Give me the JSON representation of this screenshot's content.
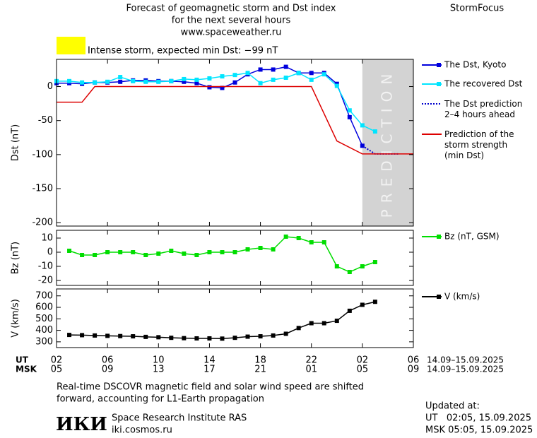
{
  "header": {
    "title": [
      "Forecast of geomagnetic storm and Dst index",
      "for the next several hours",
      "www.spaceweather.ru"
    ],
    "brand": "StormFocus",
    "alert": "Intense storm, expected min Dst: −99 nT",
    "alert_color": "#ffff00"
  },
  "chart_data": [
    {
      "type": "line",
      "ylabel": "Dst (nT)",
      "xlim": [
        0,
        28
      ],
      "ylim": [
        -205,
        40
      ],
      "yticks": [
        0,
        -50,
        -100,
        -150,
        -200
      ],
      "shaded_xrange": [
        24,
        28
      ],
      "shaded_label": "PREDICTION",
      "series": [
        {
          "name": "The Dst, Kyoto",
          "color": "#0000dd",
          "marker": "square",
          "dash": null,
          "x": [
            0,
            1,
            2,
            3,
            4,
            5,
            6,
            7,
            8,
            9,
            10,
            11,
            12,
            13,
            14,
            15,
            16,
            17,
            18,
            19,
            20,
            21,
            22,
            23,
            24
          ],
          "values": [
            5,
            5,
            4,
            6,
            6,
            7,
            9,
            9,
            8,
            8,
            7,
            5,
            -1,
            -2,
            6,
            18,
            25,
            25,
            29,
            20,
            20,
            20,
            4,
            -45,
            -87
          ]
        },
        {
          "name": "The recovered Dst",
          "color": "#00e5ff",
          "marker": "square",
          "dash": null,
          "x": [
            0,
            1,
            2,
            3,
            4,
            5,
            6,
            7,
            8,
            9,
            10,
            11,
            12,
            13,
            14,
            15,
            16,
            17,
            18,
            19,
            20,
            21,
            22,
            23,
            24,
            25
          ],
          "values": [
            8,
            8,
            6,
            6,
            7,
            14,
            8,
            7,
            7,
            8,
            11,
            10,
            12,
            15,
            17,
            20,
            5,
            10,
            13,
            20,
            10,
            18,
            1,
            -35,
            -57,
            -66
          ]
        },
        {
          "name": "The Dst prediction\n2–4 hours ahead",
          "color": "#0000cc",
          "marker": null,
          "dash": "dotted",
          "x": [
            24,
            25,
            26.8
          ],
          "values": [
            -87,
            -99,
            -99
          ]
        },
        {
          "name": "Prediction of the\nstorm strength\n(min Dst)",
          "color": "#dd0000",
          "marker": null,
          "dash": null,
          "x": [
            0,
            2,
            3,
            20,
            22,
            24,
            28
          ],
          "values": [
            -23,
            -23,
            0,
            0,
            -80,
            -99,
            -99
          ]
        }
      ]
    },
    {
      "type": "line",
      "ylabel": "Bz (nT)",
      "xlim": [
        0,
        28
      ],
      "ylim": [
        -23.5,
        15.5
      ],
      "yticks": [
        -20,
        -10,
        0,
        10
      ],
      "series": [
        {
          "name": "Bz (nT, GSM)",
          "color": "#00dd00",
          "marker": "square",
          "dash": null,
          "x": [
            1,
            2,
            3,
            4,
            5,
            6,
            7,
            8,
            9,
            10,
            11,
            12,
            13,
            14,
            15,
            16,
            17,
            18,
            19,
            20,
            21,
            22,
            23,
            24,
            25
          ],
          "values": [
            1,
            -2,
            -2,
            0,
            0,
            0,
            -2,
            -1,
            1,
            -1,
            -2,
            0,
            0,
            0,
            2,
            3,
            2,
            11,
            10,
            7,
            7,
            -10,
            -14,
            -10,
            -7
          ]
        }
      ]
    },
    {
      "type": "line",
      "ylabel": "V (km/s)",
      "xlim": [
        0,
        28
      ],
      "ylim": [
        250,
        760
      ],
      "yticks": [
        300,
        400,
        500,
        600,
        700
      ],
      "series": [
        {
          "name": "V (km/s)",
          "color": "#000000",
          "marker": "square",
          "dash": null,
          "x": [
            1,
            2,
            3,
            4,
            5,
            6,
            7,
            8,
            9,
            10,
            11,
            12,
            13,
            14,
            15,
            16,
            17,
            18,
            19,
            20,
            21,
            22,
            23,
            24,
            25
          ],
          "values": [
            360,
            358,
            355,
            352,
            350,
            348,
            343,
            340,
            335,
            332,
            330,
            330,
            328,
            335,
            345,
            348,
            355,
            370,
            420,
            462,
            462,
            483,
            570,
            622,
            648
          ]
        }
      ],
      "xtick_row_labels": [
        "UT",
        "MSK"
      ],
      "xticks": [
        {
          "value": 0,
          "label": "02"
        },
        {
          "value": 4,
          "label": "06"
        },
        {
          "value": 8,
          "label": "10"
        },
        {
          "value": 12,
          "label": "14"
        },
        {
          "value": 16,
          "label": "18"
        },
        {
          "value": 20,
          "label": "22"
        },
        {
          "value": 24,
          "label": "02"
        },
        {
          "value": 28,
          "label": "06"
        }
      ],
      "xticks_msk": [
        {
          "value": 0,
          "label": "05"
        },
        {
          "value": 4,
          "label": "09"
        },
        {
          "value": 8,
          "label": "13"
        },
        {
          "value": 12,
          "label": "17"
        },
        {
          "value": 16,
          "label": "21"
        },
        {
          "value": 20,
          "label": "01"
        },
        {
          "value": 24,
          "label": "05"
        },
        {
          "value": 28,
          "label": "09"
        }
      ],
      "date_range": [
        "14.09–15.09.2025",
        "14.09–15.09.2025"
      ]
    }
  ],
  "footer": {
    "note": [
      "Real-time DSCOVR magnetic field and solar wind speed are shifted",
      "forward, accounting for L1-Earth propagation"
    ],
    "logo": "ИКИ",
    "institute": "Space Research Institute RAS",
    "url": "iki.cosmos.ru",
    "updated": [
      "Updated at:",
      "UT   02:05, 15.09.2025",
      "MSK 05:05, 15.09.2025"
    ]
  }
}
